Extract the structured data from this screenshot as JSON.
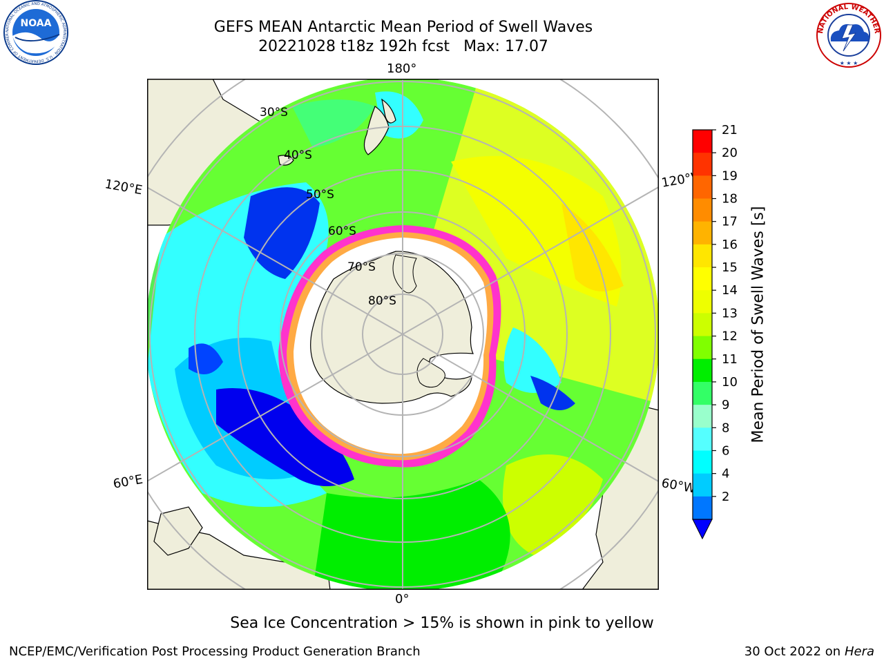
{
  "title": {
    "line1": "GEFS MEAN Antarctic Mean Period of Swell Waves",
    "line2_left": "20221028 t18z 192h fcst",
    "line2_right": "Max: 17.07"
  },
  "logos": {
    "noaa": {
      "text": "NOAA",
      "ring_text": "NATIONAL OCEANIC AND ATMOSPHERIC ADMINISTRATION · U.S. DEPARTMENT OF COMMERCE"
    },
    "nws": {
      "ring_text": "NATIONAL WEATHER SERVICE"
    }
  },
  "map": {
    "projection": "south-polar-stereographic",
    "longitude_labels": {
      "top": "180°",
      "bottom": "0°",
      "left_upper": "120°E",
      "right_upper": "120°W",
      "left_lower": "60°E",
      "right_lower": "60°W"
    },
    "latitude_labels": [
      "30°S",
      "40°S",
      "50°S",
      "60°S",
      "70°S",
      "80°S"
    ],
    "colors": {
      "land": "#efeedb",
      "ice_free_interior": "#ffffff",
      "sea_ice_edge": "#ff33cc",
      "sea_ice_inner": "#ffaa44",
      "grid": "#b4b4b4"
    }
  },
  "colorbar": {
    "label": "Mean Period of Swell Waves [s]",
    "ticks": [
      "21",
      "20",
      "19",
      "18",
      "17",
      "16",
      "15",
      "14",
      "13",
      "12",
      "11",
      "10",
      "9",
      "8",
      "6",
      "4",
      "2"
    ],
    "colors": [
      "#ff0000",
      "#ff3300",
      "#ff6600",
      "#ff8c00",
      "#ffb300",
      "#ffe600",
      "#ffff00",
      "#eeff00",
      "#ccff00",
      "#80ff00",
      "#00ee00",
      "#33ff66",
      "#99ffcc",
      "#55ffff",
      "#00ffff",
      "#00ccff",
      "#0077ff"
    ],
    "extend_color": "#0000ff"
  },
  "subtitle": "Sea Ice Concentration > 15% is shown in pink to yellow",
  "footer": {
    "left": "NCEP/EMC/Verification Post Processing Product Generation Branch",
    "right_prefix": "30 Oct 2022 on",
    "right_machine": "Hera"
  }
}
